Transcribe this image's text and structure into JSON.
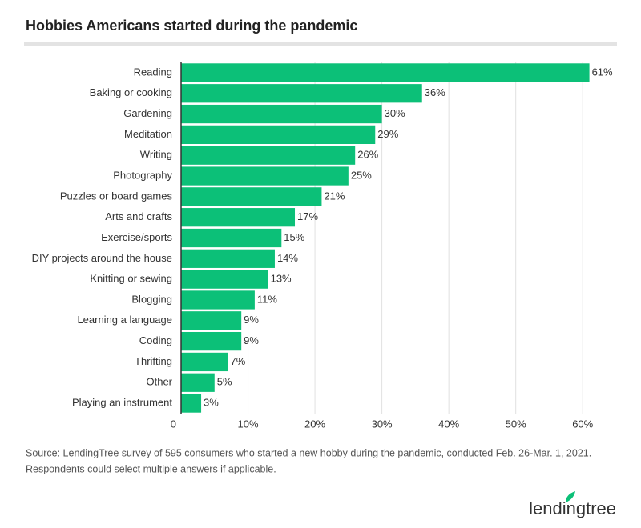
{
  "chart_data": {
    "type": "barh",
    "title": "Hobbies Americans started during the pandemic",
    "categories": [
      "Reading",
      "Baking or cooking",
      "Gardening",
      "Meditation",
      "Writing",
      "Photography",
      "Puzzles or board games",
      "Arts and crafts",
      "Exercise/sports",
      "DIY projects around the house",
      "Knitting or sewing",
      "Blogging",
      "Learning a language",
      "Coding",
      "Thrifting",
      "Other",
      "Playing an instrument"
    ],
    "values": [
      61,
      36,
      30,
      29,
      26,
      25,
      21,
      17,
      15,
      14,
      13,
      11,
      9,
      9,
      7,
      5,
      3
    ],
    "value_labels": [
      "61%",
      "36%",
      "30%",
      "29%",
      "26%",
      "25%",
      "21%",
      "17%",
      "15%",
      "14%",
      "13%",
      "11%",
      "9%",
      "9%",
      "7%",
      "5%",
      "3%"
    ],
    "color": "#0cc078",
    "xlim": [
      0,
      65
    ],
    "xticks": [
      0,
      {
        "value": 10,
        "label": "10%"
      },
      {
        "value": 20,
        "label": "20%"
      },
      {
        "value": 30,
        "label": "30%"
      },
      {
        "value": 40,
        "label": "40%"
      },
      {
        "value": 50,
        "label": "50%"
      },
      {
        "value": 60,
        "label": "60%"
      }
    ],
    "grid": true,
    "source": [
      "Source: LendingTree survey of 595 consumers who started a new hobby during the pandemic, conducted Feb. 26-Mar. 1, 2021.",
      "Respondents could select multiple answers if applicable."
    ],
    "logo": "lendingtree"
  }
}
